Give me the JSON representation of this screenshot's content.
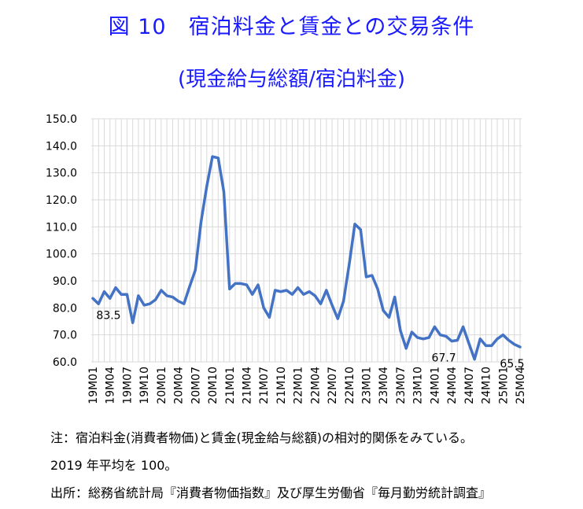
{
  "chart_data": {
    "type": "line",
    "title": "図 10　宿泊料金と賃金との交易条件",
    "subtitle": "(現金給与総額/宿泊料金)",
    "ylim": [
      60,
      150
    ],
    "yticks": [
      "150.0",
      "140.0",
      "130.0",
      "120.0",
      "110.0",
      "100.0",
      "90.0",
      "80.0",
      "70.0",
      "60.0"
    ],
    "grid": true,
    "line_color": "#4472c4",
    "xtick_labels": [
      "19M01",
      "19M04",
      "19M07",
      "19M10",
      "20M01",
      "20M04",
      "20M07",
      "20M10",
      "21M01",
      "21M04",
      "21M07",
      "21M10",
      "22M01",
      "22M04",
      "22M07",
      "22M10",
      "23M01",
      "23M04",
      "23M07",
      "23M10",
      "24M01",
      "24M04",
      "24M07",
      "24M10",
      "25M01",
      "25M04"
    ],
    "series": [
      {
        "values": [
          83.5,
          81.5,
          86,
          83.5,
          87.5,
          85,
          85,
          74.5,
          84.5,
          81,
          81.5,
          83,
          86.5,
          84.5,
          84,
          82.5,
          81.5,
          88,
          94,
          112,
          125,
          136,
          135.5,
          123,
          87,
          89,
          89,
          88.5,
          85,
          88.5,
          80,
          76.5,
          86.5,
          86,
          86.5,
          85,
          87.5,
          85,
          86,
          84.5,
          81.5,
          86.5,
          81,
          76,
          82.5,
          96,
          111,
          109,
          91.5,
          92,
          87,
          79,
          76.5,
          84,
          71.5,
          65,
          71,
          69,
          68.5,
          69,
          73,
          70,
          69.5,
          67.7,
          68,
          73,
          67,
          61,
          68.5,
          66,
          66,
          68.5,
          70,
          68,
          66.5,
          65.5
        ]
      }
    ],
    "annotations": [
      {
        "text": "83.5",
        "index": 0,
        "value": 83.5,
        "position": "below"
      },
      {
        "text": "67.7",
        "index": 63,
        "value": 67.7,
        "position": "below"
      },
      {
        "text": "65.5",
        "index": 75,
        "value": 65.5,
        "position": "below"
      }
    ]
  },
  "notes": {
    "line1": "注：宿泊料金(消費者物価)と賃金(現金給与総額)の相対的関係をみている。",
    "line2": "2019 年平均を 100。",
    "line3": "出所：総務省統計局『消費者物価指数』及び厚生労働省『毎月勤労統計調査』"
  }
}
